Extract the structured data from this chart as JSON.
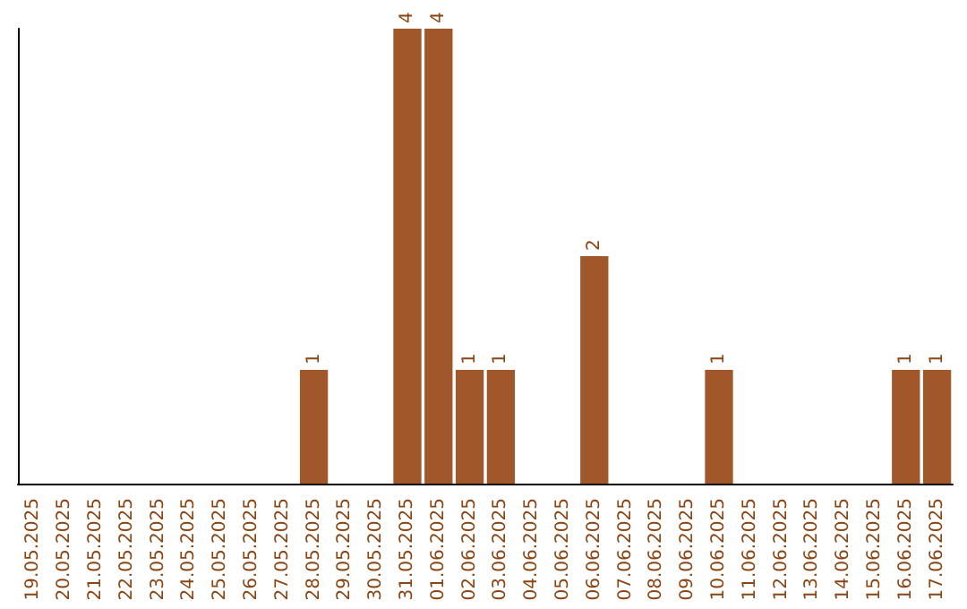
{
  "chart_data": {
    "type": "bar",
    "categories": [
      "19.05.2025",
      "20.05.2025",
      "21.05.2025",
      "22.05.2025",
      "23.05.2025",
      "24.05.2025",
      "25.05.2025",
      "26.05.2025",
      "27.05.2025",
      "28.05.2025",
      "29.05.2025",
      "30.05.2025",
      "31.05.2025",
      "01.06.2025",
      "02.06.2025",
      "03.06.2025",
      "04.06.2025",
      "05.06.2025",
      "06.06.2025",
      "07.06.2025",
      "08.06.2025",
      "09.06.2025",
      "10.06.2025",
      "11.06.2025",
      "12.06.2025",
      "13.06.2025",
      "14.06.2025",
      "15.06.2025",
      "16.06.2025",
      "17.06.2025"
    ],
    "values": [
      0,
      0,
      0,
      0,
      0,
      0,
      0,
      0,
      0,
      1,
      0,
      0,
      4,
      4,
      1,
      1,
      0,
      0,
      2,
      0,
      0,
      0,
      1,
      0,
      0,
      0,
      0,
      0,
      1,
      1
    ],
    "value_labels": [
      null,
      null,
      null,
      null,
      null,
      null,
      null,
      null,
      null,
      "1",
      null,
      null,
      "4",
      "4",
      "1",
      "1",
      null,
      null,
      "2",
      null,
      null,
      null,
      "1",
      null,
      null,
      null,
      null,
      null,
      "1",
      "1"
    ],
    "color": "#a0572a"
  }
}
